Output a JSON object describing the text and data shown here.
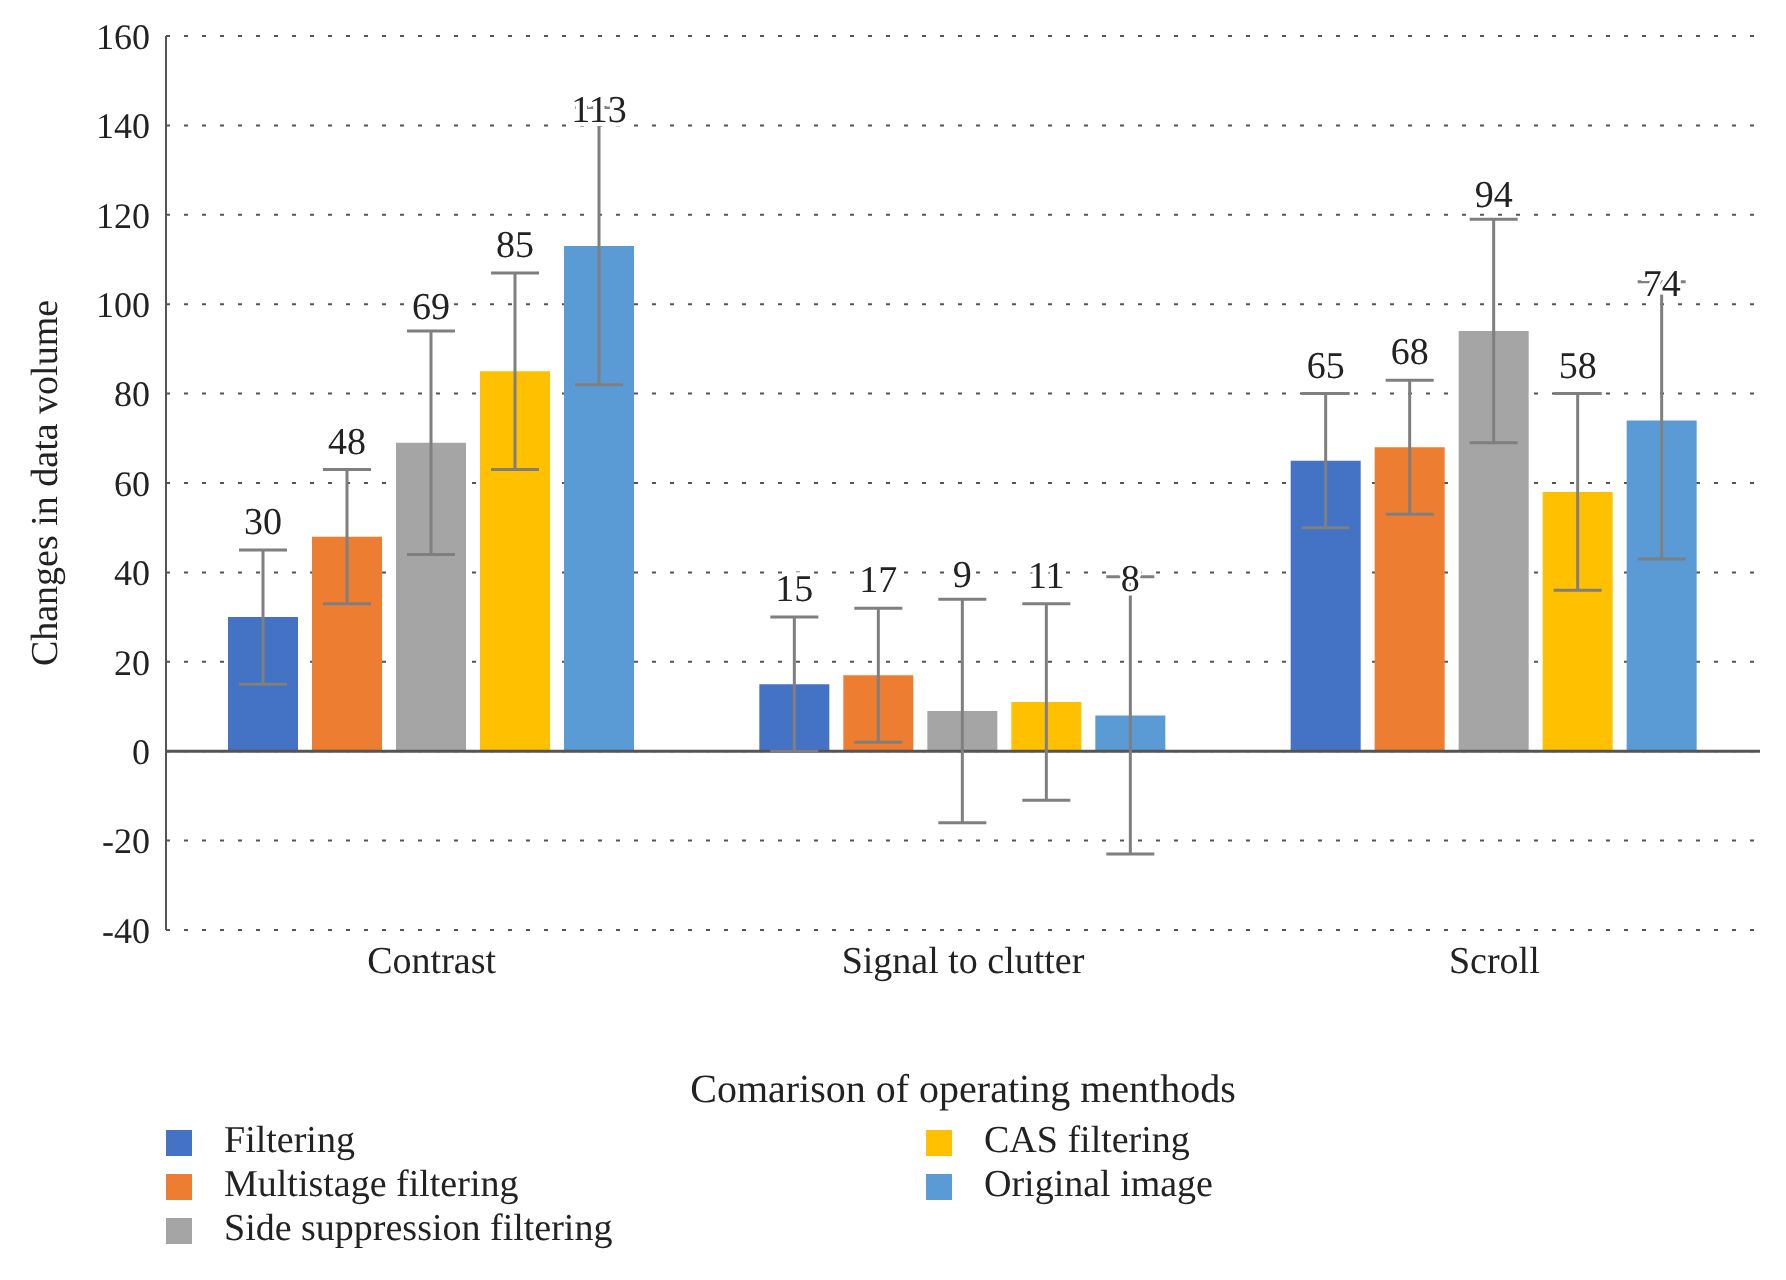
{
  "chart_data": {
    "type": "bar",
    "xlabel": "Comarison of operating menthods",
    "ylabel": "Changes in data volume",
    "categories": [
      "Contrast",
      "Signal to clutter",
      "Scroll"
    ],
    "series": [
      {
        "name": "Filtering",
        "color": "#4472c4",
        "values": [
          30,
          15,
          65
        ],
        "errors": [
          15,
          15,
          15
        ]
      },
      {
        "name": "Multistage filtering",
        "color": "#ed7d31",
        "values": [
          48,
          17,
          68
        ],
        "errors": [
          15,
          15,
          15
        ]
      },
      {
        "name": "Side suppression filtering",
        "color": "#a5a5a5",
        "values": [
          69,
          9,
          94
        ],
        "errors": [
          25,
          25,
          25
        ]
      },
      {
        "name": "CAS filtering",
        "color": "#ffc000",
        "values": [
          85,
          11,
          58
        ],
        "errors": [
          22,
          22,
          22
        ]
      },
      {
        "name": "Original image",
        "color": "#5b9bd5",
        "values": [
          113,
          8,
          74
        ],
        "errors": [
          31,
          31,
          31
        ]
      }
    ],
    "ylim": [
      -40,
      160
    ],
    "yticks": [
      -40,
      -20,
      0,
      20,
      40,
      60,
      80,
      100,
      120,
      140,
      160
    ],
    "grid": "y",
    "legend": "bottom",
    "data_labels": true
  }
}
